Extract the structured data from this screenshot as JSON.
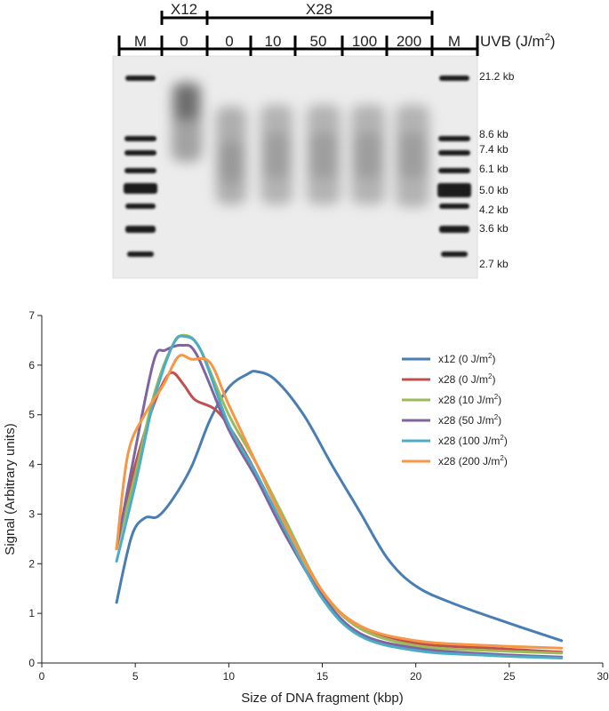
{
  "gel": {
    "group_labels": [
      "X12",
      "X28"
    ],
    "unit_label": "UVB (J/m",
    "unit_sup": "2",
    "unit_close": ")",
    "lane_labels": [
      "M",
      "0",
      "0",
      "10",
      "50",
      "100",
      "200",
      "M"
    ],
    "size_markers": [
      "21.2 kb",
      "8.6 kb",
      "7.4 kb",
      "6.1 kb",
      "5.0 kb",
      "4.2 kb",
      "3.6 kb",
      "2.7 kb"
    ]
  },
  "chart_data": {
    "type": "line",
    "title": "",
    "xlabel": "Size of DNA fragment (kbp)",
    "ylabel": "Signal (Arbitrary units)",
    "xlim": [
      0,
      30
    ],
    "ylim": [
      0,
      7
    ],
    "xticks": [
      0,
      5,
      10,
      15,
      20,
      25,
      30
    ],
    "yticks": [
      0,
      1,
      2,
      3,
      4,
      5,
      6,
      7
    ],
    "grid": false,
    "legend_position": "right",
    "series": [
      {
        "name": "x12 (0 J/m",
        "name_sup": "2",
        "name_close": ")",
        "color": "#4a7eb3",
        "x": [
          4.0,
          4.8,
          5.5,
          6.2,
          7.0,
          8.0,
          9.0,
          10.0,
          11.0,
          11.5,
          12.5,
          14.0,
          15.5,
          17.0,
          18.5,
          20.0,
          22.0,
          25.0,
          27.8
        ],
        "y": [
          1.22,
          2.55,
          2.92,
          2.95,
          3.3,
          3.95,
          4.9,
          5.55,
          5.82,
          5.87,
          5.7,
          5.0,
          4.0,
          3.05,
          2.1,
          1.55,
          1.2,
          0.8,
          0.45
        ]
      },
      {
        "name": "x28 (0 J/m",
        "name_sup": "2",
        "name_close": ")",
        "color": "#c0504d",
        "x": [
          4.0,
          4.8,
          5.8,
          6.5,
          7.0,
          7.6,
          8.2,
          9.3,
          10.3,
          11.5,
          13.0,
          15.0,
          17.0,
          20.0,
          24.0,
          27.8
        ],
        "y": [
          2.3,
          3.7,
          5.0,
          5.65,
          5.85,
          5.6,
          5.3,
          5.1,
          4.6,
          3.8,
          2.6,
          1.4,
          0.75,
          0.4,
          0.3,
          0.22
        ]
      },
      {
        "name": "x28 (10 J/m",
        "name_sup": "2",
        "name_close": ")",
        "color": "#9bbb59",
        "x": [
          4.0,
          5.0,
          6.0,
          7.0,
          7.7,
          8.5,
          10.0,
          11.5,
          13.0,
          15.0,
          17.0,
          20.0,
          24.0,
          27.8
        ],
        "y": [
          2.3,
          3.8,
          5.4,
          6.4,
          6.6,
          6.3,
          5.0,
          4.0,
          2.9,
          1.45,
          0.7,
          0.35,
          0.25,
          0.2
        ]
      },
      {
        "name": "x28 (50 J/m",
        "name_sup": "2",
        "name_close": ")",
        "color": "#8064a2",
        "x": [
          4.0,
          5.0,
          6.0,
          6.6,
          7.5,
          8.3,
          10.0,
          11.5,
          13.0,
          15.0,
          17.0,
          20.0,
          24.0,
          27.8
        ],
        "y": [
          2.3,
          4.3,
          6.1,
          6.3,
          6.4,
          6.2,
          4.7,
          3.7,
          2.6,
          1.35,
          0.6,
          0.3,
          0.18,
          0.12
        ]
      },
      {
        "name": "x28 (100 J/m",
        "name_sup": "2",
        "name_close": ")",
        "color": "#4bacc6",
        "x": [
          4.0,
          5.0,
          6.0,
          7.0,
          7.6,
          8.5,
          10.0,
          11.5,
          13.0,
          15.0,
          17.0,
          20.0,
          24.0,
          27.8
        ],
        "y": [
          2.05,
          3.6,
          5.3,
          6.4,
          6.58,
          6.3,
          4.8,
          3.8,
          2.7,
          1.3,
          0.55,
          0.25,
          0.15,
          0.1
        ]
      },
      {
        "name": "x28 (200 J/m",
        "name_sup": "2",
        "name_close": ")",
        "color": "#f79646",
        "x": [
          4.0,
          4.6,
          5.5,
          6.5,
          7.3,
          8.0,
          9.0,
          10.0,
          11.5,
          13.0,
          15.0,
          17.0,
          20.0,
          24.0,
          27.8
        ],
        "y": [
          2.3,
          4.2,
          5.0,
          5.6,
          6.17,
          6.12,
          6.05,
          5.2,
          4.0,
          2.8,
          1.45,
          0.75,
          0.45,
          0.35,
          0.3
        ]
      }
    ]
  }
}
